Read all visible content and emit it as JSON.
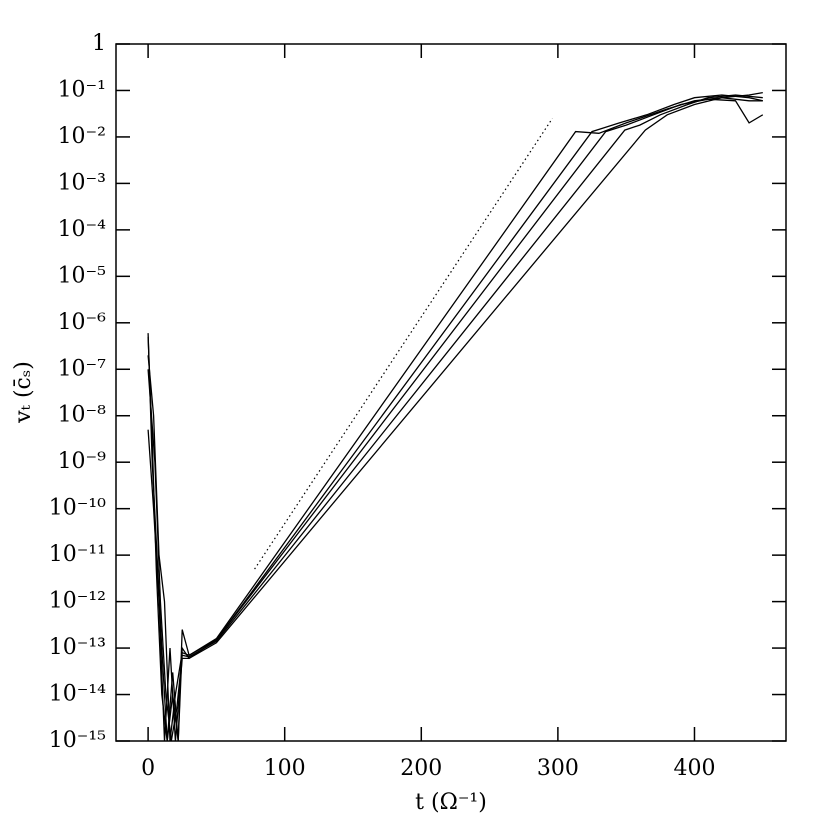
{
  "chart_data": {
    "type": "line",
    "xlabel": "t (Ω⁻¹)",
    "ylabel": "vₜ (c̄ₛ)",
    "ylog": true,
    "xlim": [
      -23.5,
      467
    ],
    "ylim": [
      1e-15,
      1
    ],
    "xticks": [
      0,
      100,
      200,
      300,
      400
    ],
    "yticks": [
      1,
      {
        "value": 0.1,
        "label": "10⁻¹"
      },
      {
        "value": 0.01,
        "label": "10⁻²"
      },
      {
        "value": 0.001,
        "label": "10⁻³"
      },
      {
        "value": 0.0001,
        "label": "10⁻⁴"
      },
      {
        "value": 1e-05,
        "label": "10⁻⁵"
      },
      {
        "value": 1e-06,
        "label": "10⁻⁶"
      },
      {
        "value": 1e-07,
        "label": "10⁻⁷"
      },
      {
        "value": 1e-08,
        "label": "10⁻⁸"
      },
      {
        "value": 1e-09,
        "label": "10⁻⁹"
      },
      {
        "value": 1e-10,
        "label": "10⁻¹⁰"
      },
      {
        "value": 1e-11,
        "label": "10⁻¹¹"
      },
      {
        "value": 1e-12,
        "label": "10⁻¹²"
      },
      {
        "value": 1e-13,
        "label": "10⁻¹³"
      },
      {
        "value": 1e-14,
        "label": "10⁻¹⁴"
      },
      {
        "value": 1e-15,
        "label": "10⁻¹⁵"
      }
    ],
    "series": [
      {
        "color": "#000000",
        "style": "solid",
        "x": [
          0,
          3,
          6,
          10,
          14,
          18,
          22,
          25,
          30,
          50,
          313,
          330,
          350,
          380,
          400,
          420,
          440,
          450
        ],
        "values": [
          6e-07,
          1e-09,
          2e-11,
          1e-13,
          1e-15,
          3e-14,
          1e-15,
          2.5e-13,
          7e-14,
          1.6e-13,
          0.013,
          0.012,
          0.02,
          0.04,
          0.06,
          0.07,
          0.08,
          0.09
        ]
      },
      {
        "color": "#000000",
        "style": "solid",
        "x": [
          0,
          3,
          6,
          10,
          14,
          18,
          22,
          25,
          30,
          50,
          325,
          345,
          365,
          385,
          400,
          420,
          440,
          450
        ],
        "values": [
          5e-07,
          3e-09,
          5e-12,
          1e-14,
          1e-15,
          1e-14,
          1e-15,
          1e-13,
          6e-14,
          1.5e-13,
          0.013,
          0.02,
          0.03,
          0.05,
          0.07,
          0.08,
          0.07,
          0.06
        ]
      },
      {
        "color": "#000000",
        "style": "solid",
        "x": [
          0,
          4,
          8,
          12,
          16,
          20,
          25,
          30,
          50,
          335,
          350,
          370,
          390,
          410,
          430,
          440,
          450
        ],
        "values": [
          2e-07,
          1e-08,
          1e-11,
          1e-12,
          1e-15,
          1e-14,
          8e-14,
          7e-14,
          1.5e-13,
          0.013,
          0.018,
          0.03,
          0.05,
          0.065,
          0.06,
          0.02,
          0.03
        ]
      },
      {
        "color": "#000000",
        "style": "solid",
        "x": [
          0,
          5,
          9,
          13,
          17,
          21,
          25,
          30,
          50,
          349,
          360,
          375,
          395,
          410,
          430,
          450
        ],
        "values": [
          1e-07,
          1e-09,
          1e-12,
          1e-14,
          1e-15,
          5e-15,
          7e-14,
          6.5e-14,
          1.4e-13,
          0.014,
          0.018,
          0.03,
          0.05,
          0.07,
          0.08,
          0.07
        ]
      },
      {
        "color": "#000000",
        "style": "solid",
        "x": [
          0,
          4,
          8,
          12,
          16,
          20,
          25,
          30,
          50,
          364,
          380,
          400,
          420,
          440,
          450
        ],
        "values": [
          5e-09,
          1e-10,
          1e-12,
          1e-15,
          1e-13,
          1e-15,
          6e-14,
          6e-14,
          1.3e-13,
          0.014,
          0.03,
          0.05,
          0.07,
          0.06,
          0.06
        ]
      },
      {
        "color": "#000000",
        "style": "dotted",
        "x": [
          78,
          296
        ],
        "values": [
          5e-12,
          0.025
        ]
      }
    ]
  }
}
